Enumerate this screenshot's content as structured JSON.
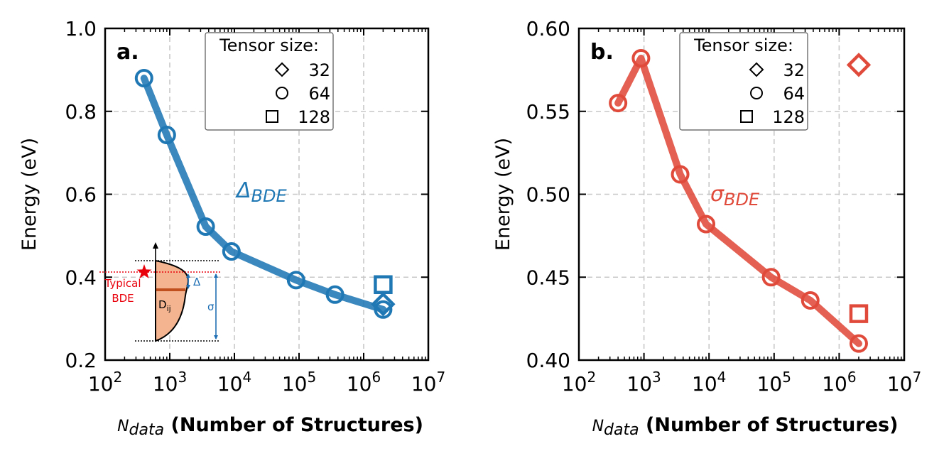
{
  "chart_data": [
    {
      "type": "line",
      "panel_label": "a.",
      "xscale": "log",
      "xlim": [
        100,
        10000000
      ],
      "ylim": [
        0.2,
        1.0
      ],
      "yticks": [
        "0.2",
        "0.4",
        "0.6",
        "0.8",
        "1.0"
      ],
      "xticks": [
        {
          "base": "10",
          "exp": "2"
        },
        {
          "base": "10",
          "exp": "3"
        },
        {
          "base": "10",
          "exp": "4"
        },
        {
          "base": "10",
          "exp": "5"
        },
        {
          "base": "10",
          "exp": "6"
        },
        {
          "base": "10",
          "exp": "7"
        }
      ],
      "ylabel": "Energy (eV)",
      "xlabel_italic": "N",
      "xlabel_sub": "data",
      "xlabel_bold": " (Number of Structures)",
      "color": "#1f77b4",
      "series_label": "Δ",
      "series_label_sub": "BDE",
      "series": [
        {
          "name": "64",
          "marker": "circle",
          "x": [
            400,
            900,
            3600,
            9000,
            90000,
            360000,
            2000000
          ],
          "y": [
            0.88,
            0.743,
            0.522,
            0.462,
            0.393,
            0.358,
            0.322
          ]
        }
      ],
      "extra_points": [
        {
          "name": "32",
          "marker": "diamond",
          "x": 2000000,
          "y": 0.335
        },
        {
          "name": "128",
          "marker": "square",
          "x": 2000000,
          "y": 0.382
        }
      ],
      "legend": {
        "title": "Tensor size:",
        "entries": [
          {
            "marker": "diamond",
            "label": "32"
          },
          {
            "marker": "circle",
            "label": "64"
          },
          {
            "marker": "square",
            "label": "128"
          }
        ],
        "position": "top-right"
      },
      "inset": {
        "typical_label_1": "Typical",
        "typical_label_2": "BDE",
        "delta_label": "Δ",
        "sigma_label": "σ",
        "dist_label": "D",
        "dist_sub": "ij",
        "typical_color": "#e8000b",
        "fill_color": "#f4b490",
        "median_color": "#c0501d"
      }
    },
    {
      "type": "line",
      "panel_label": "b.",
      "xscale": "log",
      "xlim": [
        100,
        10000000
      ],
      "ylim": [
        0.4,
        0.6
      ],
      "yticks": [
        "0.40",
        "0.45",
        "0.50",
        "0.55",
        "0.60"
      ],
      "xticks": [
        {
          "base": "10",
          "exp": "2"
        },
        {
          "base": "10",
          "exp": "3"
        },
        {
          "base": "10",
          "exp": "4"
        },
        {
          "base": "10",
          "exp": "5"
        },
        {
          "base": "10",
          "exp": "6"
        },
        {
          "base": "10",
          "exp": "7"
        }
      ],
      "ylabel": "Energy (eV)",
      "xlabel_italic": "N",
      "xlabel_sub": "data",
      "xlabel_bold": " (Number of Structures)",
      "color": "#e04a3a",
      "series_label": "σ",
      "series_label_sub": "BDE",
      "series": [
        {
          "name": "64",
          "marker": "circle",
          "x": [
            400,
            900,
            3600,
            9000,
            90000,
            360000,
            2000000
          ],
          "y": [
            0.555,
            0.582,
            0.512,
            0.482,
            0.45,
            0.436,
            0.41
          ]
        }
      ],
      "extra_points": [
        {
          "name": "32",
          "marker": "diamond",
          "x": 2000000,
          "y": 0.578
        },
        {
          "name": "128",
          "marker": "square",
          "x": 2000000,
          "y": 0.428
        }
      ],
      "legend": {
        "title": "Tensor size:",
        "entries": [
          {
            "marker": "diamond",
            "label": "32"
          },
          {
            "marker": "circle",
            "label": "64"
          },
          {
            "marker": "square",
            "label": "128"
          }
        ],
        "position": "top-right"
      }
    }
  ]
}
